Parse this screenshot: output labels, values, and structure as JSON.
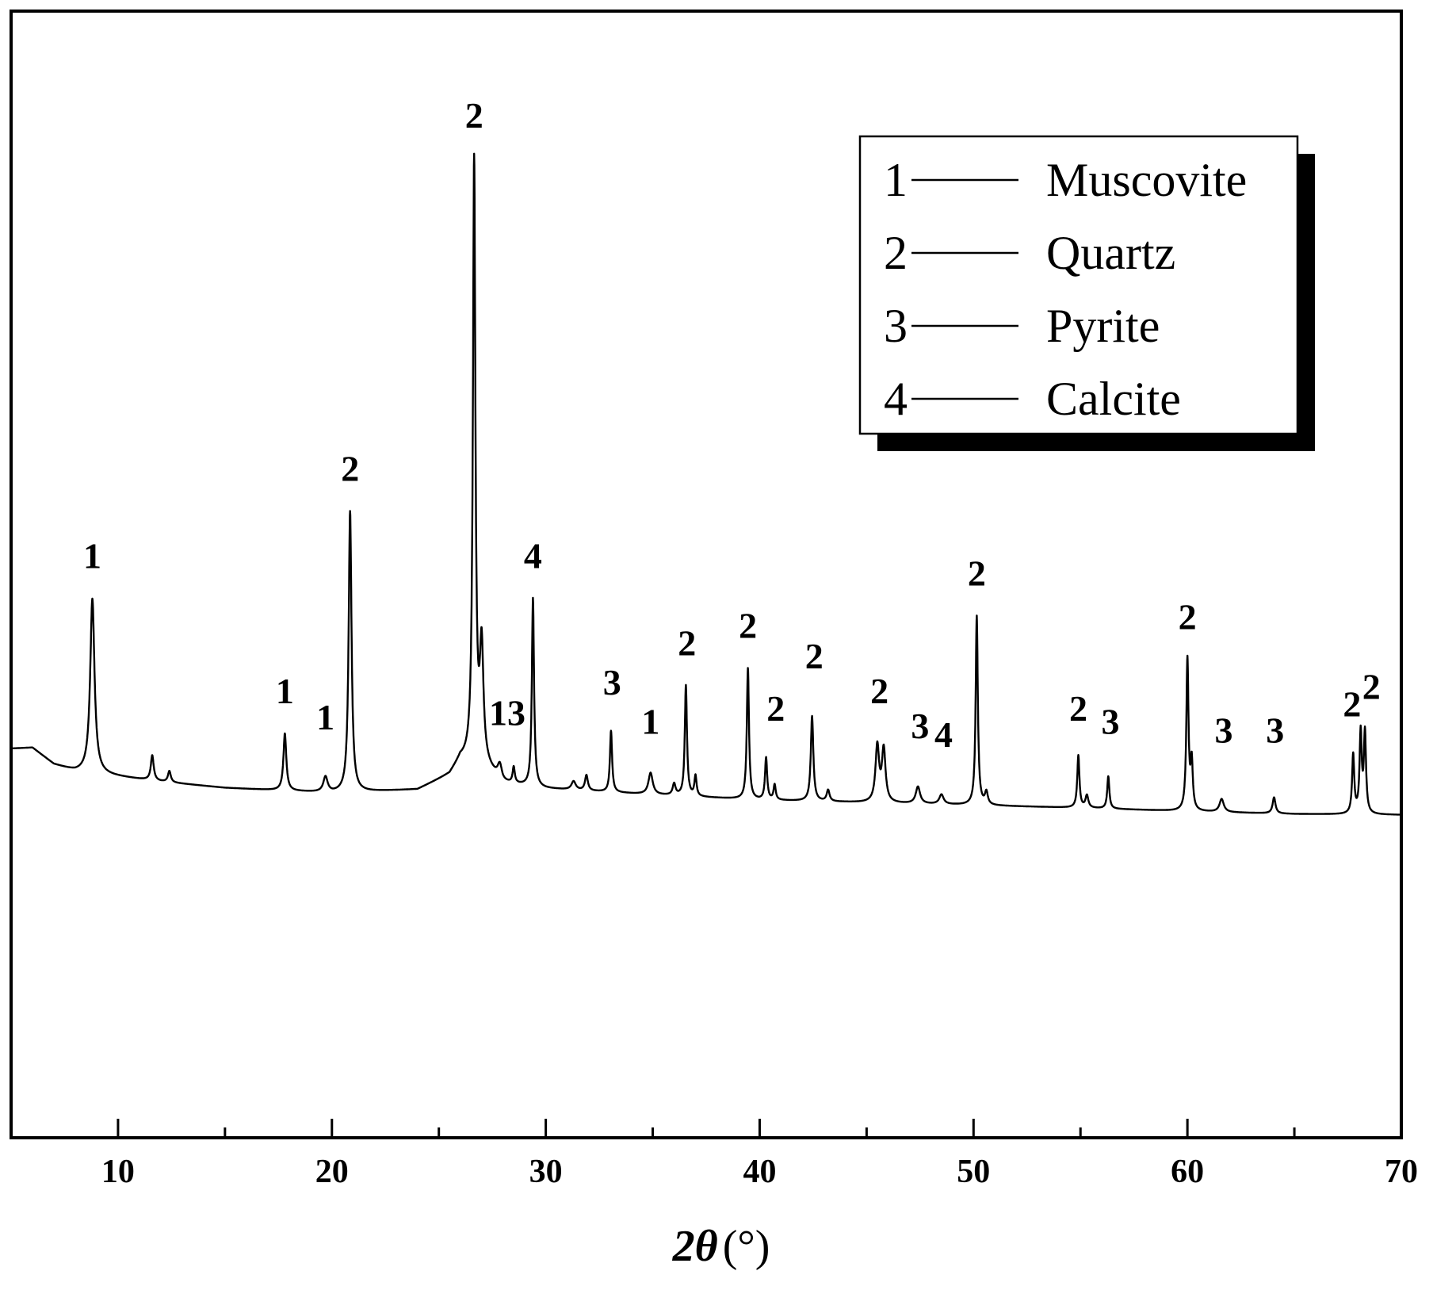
{
  "chart_data": {
    "type": "line",
    "title": "",
    "xlabel": "2θ (°)",
    "xlabel_parts": {
      "main": "2",
      "theta": "θ",
      "unit": "(°)"
    },
    "ylabel": "",
    "xlim": [
      5,
      70
    ],
    "ylim": [
      0,
      100
    ],
    "y_ticks_shown": false,
    "x_ticks": [
      10,
      20,
      30,
      40,
      50,
      60,
      70
    ],
    "x_minor_step": 5,
    "grid": false,
    "line_color": "#000000",
    "legend": {
      "placement": "top-right",
      "entries": [
        {
          "id": "1",
          "label": "Muscovite"
        },
        {
          "id": "2",
          "label": "Quartz"
        },
        {
          "id": "3",
          "label": "Pyrite"
        },
        {
          "id": "4",
          "label": "Calcite"
        }
      ]
    },
    "baseline": [
      [
        5.0,
        32.8
      ],
      [
        6.0,
        32.9
      ],
      [
        7.0,
        31.0
      ],
      [
        8.0,
        30.2
      ],
      [
        12.0,
        29.0
      ],
      [
        15.0,
        28.3
      ],
      [
        20.0,
        27.7
      ],
      [
        24.0,
        28.1
      ],
      [
        25.5,
        29.8
      ],
      [
        26.0,
        31.5
      ],
      [
        27.0,
        31.0
      ],
      [
        28.0,
        28.8
      ],
      [
        30.0,
        28.2
      ],
      [
        35.0,
        27.5
      ],
      [
        40.0,
        26.9
      ],
      [
        45.0,
        26.6
      ],
      [
        50.0,
        26.3
      ],
      [
        55.0,
        26.0
      ],
      [
        60.0,
        25.6
      ],
      [
        65.0,
        25.3
      ],
      [
        70.0,
        25.2
      ]
    ],
    "peaks": [
      {
        "x": 8.8,
        "y": 50.0,
        "w": 0.12,
        "label": "1"
      },
      {
        "x": 11.6,
        "y": 32.0,
        "w": 0.08,
        "label": ""
      },
      {
        "x": 12.4,
        "y": 30.2,
        "w": 0.08,
        "label": ""
      },
      {
        "x": 17.8,
        "y": 34.5,
        "w": 0.08,
        "label": "1"
      },
      {
        "x": 19.7,
        "y": 29.5,
        "w": 0.12,
        "label": "1"
      },
      {
        "x": 20.85,
        "y": 60.0,
        "w": 0.08,
        "label": "2"
      },
      {
        "x": 26.65,
        "y": 100.0,
        "w": 0.07,
        "label": "2"
      },
      {
        "x": 27.0,
        "y": 44.0,
        "w": 0.1,
        "label": ""
      },
      {
        "x": 27.85,
        "y": 30.8,
        "w": 0.12,
        "label": "1"
      },
      {
        "x": 28.5,
        "y": 30.5,
        "w": 0.06,
        "label": "3"
      },
      {
        "x": 29.4,
        "y": 50.0,
        "w": 0.06,
        "label": "4"
      },
      {
        "x": 31.3,
        "y": 29.0,
        "w": 0.12,
        "label": ""
      },
      {
        "x": 31.9,
        "y": 29.7,
        "w": 0.08,
        "label": ""
      },
      {
        "x": 33.05,
        "y": 34.8,
        "w": 0.06,
        "label": "3"
      },
      {
        "x": 34.9,
        "y": 30.0,
        "w": 0.12,
        "label": "1"
      },
      {
        "x": 36.0,
        "y": 28.7,
        "w": 0.08,
        "label": ""
      },
      {
        "x": 36.55,
        "y": 40.0,
        "w": 0.06,
        "label": "2"
      },
      {
        "x": 37.0,
        "y": 29.6,
        "w": 0.06,
        "label": ""
      },
      {
        "x": 39.45,
        "y": 42.0,
        "w": 0.06,
        "label": "2"
      },
      {
        "x": 40.3,
        "y": 31.7,
        "w": 0.06,
        "label": "2"
      },
      {
        "x": 40.7,
        "y": 28.6,
        "w": 0.06,
        "label": ""
      },
      {
        "x": 42.45,
        "y": 36.5,
        "w": 0.07,
        "label": "2"
      },
      {
        "x": 43.2,
        "y": 28.0,
        "w": 0.08,
        "label": ""
      },
      {
        "x": 45.5,
        "y": 33.0,
        "w": 0.1,
        "label": "2"
      },
      {
        "x": 45.8,
        "y": 32.6,
        "w": 0.1,
        "label": ""
      },
      {
        "x": 47.4,
        "y": 28.4,
        "w": 0.12,
        "label": "3"
      },
      {
        "x": 48.5,
        "y": 27.5,
        "w": 0.12,
        "label": "4"
      },
      {
        "x": 50.15,
        "y": 48.0,
        "w": 0.06,
        "label": "2"
      },
      {
        "x": 50.6,
        "y": 27.7,
        "w": 0.08,
        "label": ""
      },
      {
        "x": 54.9,
        "y": 32.0,
        "w": 0.06,
        "label": "2"
      },
      {
        "x": 55.3,
        "y": 27.4,
        "w": 0.08,
        "label": ""
      },
      {
        "x": 56.3,
        "y": 29.6,
        "w": 0.06,
        "label": "3"
      },
      {
        "x": 60.0,
        "y": 43.0,
        "w": 0.06,
        "label": "2"
      },
      {
        "x": 60.2,
        "y": 31.0,
        "w": 0.06,
        "label": ""
      },
      {
        "x": 61.6,
        "y": 27.0,
        "w": 0.12,
        "label": "3"
      },
      {
        "x": 64.05,
        "y": 27.2,
        "w": 0.08,
        "label": "3"
      },
      {
        "x": 67.75,
        "y": 32.0,
        "w": 0.06,
        "label": "2"
      },
      {
        "x": 68.1,
        "y": 34.5,
        "w": 0.06,
        "label": ""
      },
      {
        "x": 68.3,
        "y": 34.5,
        "w": 0.06,
        "label": "2"
      }
    ],
    "peak_labels": [
      {
        "text": "1",
        "x": 8.8,
        "y": 53.5
      },
      {
        "text": "1",
        "x": 17.8,
        "y": 38.0
      },
      {
        "text": "1",
        "x": 19.7,
        "y": 35.0
      },
      {
        "text": "2",
        "x": 20.85,
        "y": 63.5
      },
      {
        "text": "2",
        "x": 26.65,
        "y": 104.0
      },
      {
        "text": "13",
        "x": 28.2,
        "y": 35.5
      },
      {
        "text": "4",
        "x": 29.4,
        "y": 53.5
      },
      {
        "text": "3",
        "x": 33.1,
        "y": 39.0
      },
      {
        "text": "1",
        "x": 34.9,
        "y": 34.5
      },
      {
        "text": "2",
        "x": 36.6,
        "y": 43.5
      },
      {
        "text": "2",
        "x": 39.45,
        "y": 45.5
      },
      {
        "text": "2",
        "x": 40.75,
        "y": 36.0
      },
      {
        "text": "2",
        "x": 42.55,
        "y": 42.0
      },
      {
        "text": "2",
        "x": 45.6,
        "y": 38.0
      },
      {
        "text": "3",
        "x": 47.5,
        "y": 34.0
      },
      {
        "text": "4",
        "x": 48.6,
        "y": 33.0
      },
      {
        "text": "2",
        "x": 50.15,
        "y": 51.5
      },
      {
        "text": "2",
        "x": 54.9,
        "y": 36.0
      },
      {
        "text": "3",
        "x": 56.4,
        "y": 34.5
      },
      {
        "text": "2",
        "x": 60.0,
        "y": 46.5
      },
      {
        "text": "3",
        "x": 61.7,
        "y": 33.5
      },
      {
        "text": "3",
        "x": 64.1,
        "y": 33.5
      },
      {
        "text": "2",
        "x": 67.7,
        "y": 36.5
      },
      {
        "text": "2",
        "x": 68.6,
        "y": 38.5
      }
    ]
  }
}
